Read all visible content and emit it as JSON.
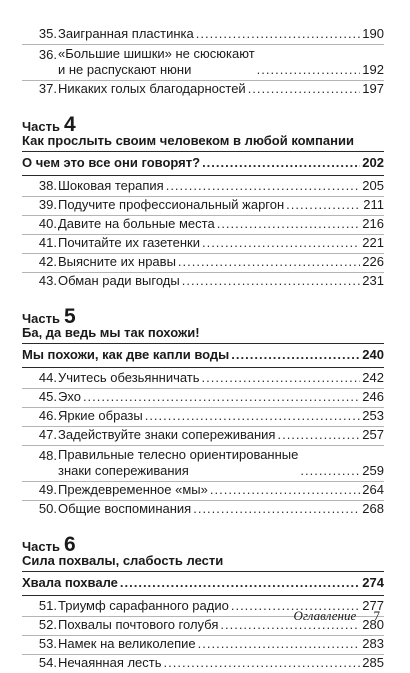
{
  "top_items": [
    {
      "num": "35.",
      "title": "Заигранная пластинка",
      "page": "190"
    },
    {
      "num": "36.",
      "title_lines": [
        "«Большие шишки» не сюсюкают",
        "и не распускают нюни"
      ],
      "page": "192"
    },
    {
      "num": "37.",
      "title": "Никаких голых благодарностей",
      "page": "197"
    }
  ],
  "parts": [
    {
      "label": "Часть",
      "number": "4",
      "title": "Как прослыть своим человеком в любой компании",
      "lead": {
        "title": "О чем это все они говорят?",
        "page": "202"
      },
      "items": [
        {
          "num": "38.",
          "title": "Шоковая терапия",
          "page": "205"
        },
        {
          "num": "39.",
          "title": "Подучите профессиональный жаргон",
          "page": "211"
        },
        {
          "num": "40.",
          "title": "Давите на больные места",
          "page": "216"
        },
        {
          "num": "41.",
          "title": "Почитайте их газетенки",
          "page": "221"
        },
        {
          "num": "42.",
          "title": "Выясните их нравы",
          "page": "226"
        },
        {
          "num": "43.",
          "title": "Обман ради выгоды",
          "page": "231"
        }
      ]
    },
    {
      "label": "Часть",
      "number": "5",
      "title": "Ба, да ведь мы так похожи!",
      "lead": {
        "title": "Мы похожи, как две капли воды",
        "page": "240"
      },
      "items": [
        {
          "num": "44.",
          "title": "Учитесь обезьянничать",
          "page": "242"
        },
        {
          "num": "45.",
          "title": "Эхо",
          "page": "246"
        },
        {
          "num": "46.",
          "title": "Яркие образы",
          "page": "253"
        },
        {
          "num": "47.",
          "title": "Задействуйте знаки сопереживания",
          "page": "257"
        },
        {
          "num": "48.",
          "title_lines": [
            "Правильные телесно ориентированные",
            "знаки сопереживания"
          ],
          "page": "259"
        },
        {
          "num": "49.",
          "title": "Преждевременное «мы»",
          "page": "264"
        },
        {
          "num": "50.",
          "title": "Общие воспоминания",
          "page": "268"
        }
      ]
    },
    {
      "label": "Часть",
      "number": "6",
      "title": "Сила похвалы, слабость лести",
      "lead": {
        "title": "Хвала похвале",
        "page": "274"
      },
      "items": [
        {
          "num": "51.",
          "title": "Триумф сарафанного радио",
          "page": "277"
        },
        {
          "num": "52.",
          "title": "Похвалы почтового голубя",
          "page": "280"
        },
        {
          "num": "53.",
          "title": "Намек на великолепие",
          "page": "283"
        },
        {
          "num": "54.",
          "title": "Нечаянная лесть",
          "page": "285"
        }
      ]
    }
  ],
  "footer": {
    "label": "Оглавление",
    "page_number": "7"
  }
}
